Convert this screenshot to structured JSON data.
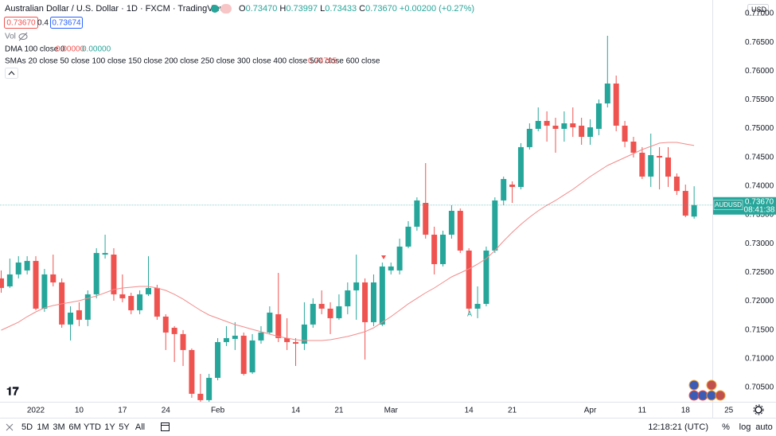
{
  "header": {
    "title": "Australian Dollar / U.S. Dollar · 1D · FXCM · TradingView",
    "ohlc": [
      {
        "key": "O",
        "value": "0.73470"
      },
      {
        "key": "H",
        "value": "0.73997"
      },
      {
        "key": "L",
        "value": "0.73433"
      },
      {
        "key": "C",
        "value": "0.73670"
      }
    ],
    "change": "+0.00200 (+0.27%)",
    "bid": "0.73670",
    "spread": "0.4",
    "ask": "0.73674",
    "vol": "Vol",
    "dma": {
      "name": "DMA 100 close 0",
      "values": [
        "0.00000",
        "0.00000"
      ]
    },
    "currency": "USD"
  },
  "toolbar": {
    "ranges": [
      "5D",
      "1M",
      "3M",
      "6M",
      "YTD",
      "1Y",
      "5Y",
      "All"
    ],
    "clock": "12:18:21 (UTC)",
    "options": [
      "%",
      "log",
      "auto"
    ]
  },
  "chart_data": {
    "type": "candlestick",
    "open": [
      0.72395,
      0.72256,
      0.72464,
      0.72533,
      0.72699,
      0.71869,
      0.72464,
      0.72325,
      0.71593,
      0.71841,
      0.71676,
      0.72118,
      0.72809,
      0.72809,
      0.72118,
      0.7209,
      0.71841,
      0.72118,
      0.72229,
      0.71731,
      0.71537,
      0.71427,
      0.7115,
      0.70389,
      0.70279,
      0.70666,
      0.71288,
      0.71343,
      0.71399,
      0.70762,
      0.71316,
      0.71454,
      0.71772,
      0.71357,
      0.71288,
      0.7126,
      0.71593,
      0.71952,
      0.71869,
      0.71703,
      0.7191,
      0.72187,
      0.72325,
      0.71634,
      0.71593,
      0.72533,
      0.72533,
      0.72948,
      0.73294,
      0.73708,
      0.73155,
      0.72643,
      0.73155,
      0.7357,
      0.72879,
      0.71869,
      0.71952,
      0.72879,
      0.7375,
      0.74026,
      0.73985,
      0.74677,
      0.74995,
      0.75133,
      0.7505,
      0.74995,
      0.75091,
      0.7505,
      0.74856,
      0.74995,
      0.75437,
      0.75783,
      0.7505,
      0.74773,
      0.7458,
      0.74165,
      0.74524,
      0.74497,
      0.74165,
      0.73916,
      0.7347
    ],
    "high": [
      0.72533,
      0.7274,
      0.72782,
      0.72782,
      0.72782,
      0.7256,
      0.72809,
      0.72395,
      0.7191,
      0.7198,
      0.72187,
      0.7292,
      0.73155,
      0.7292,
      0.72464,
      0.72146,
      0.72187,
      0.72782,
      0.72284,
      0.71772,
      0.71565,
      0.71496,
      0.71177,
      0.70735,
      0.70735,
      0.71357,
      0.71565,
      0.71634,
      0.71454,
      0.71427,
      0.71565,
      0.7191,
      0.72491,
      0.71703,
      0.71357,
      0.7198,
      0.72049,
      0.72187,
      0.7198,
      0.72118,
      0.72325,
      0.72809,
      0.72395,
      0.72464,
      0.72671,
      0.72671,
      0.73086,
      0.7339,
      0.73805,
      0.744,
      0.73294,
      0.73224,
      0.73667,
      0.73611,
      0.7292,
      0.72256,
      0.72948,
      0.73805,
      0.74165,
      0.74082,
      0.74746,
      0.75091,
      0.75368,
      0.75299,
      0.75188,
      0.75299,
      0.75368,
      0.75188,
      0.75161,
      0.75506,
      0.76613,
      0.75921,
      0.75133,
      0.74856,
      0.74677,
      0.74912,
      0.74677,
      0.74677,
      0.7422,
      0.74026,
      0.73997
    ],
    "low": [
      0.72146,
      0.72229,
      0.72395,
      0.72464,
      0.71841,
      0.71814,
      0.72256,
      0.71537,
      0.71316,
      0.71565,
      0.71565,
      0.72049,
      0.7274,
      0.72007,
      0.7198,
      0.71772,
      0.71772,
      0.7209,
      0.71676,
      0.7115,
      0.70942,
      0.70873,
      0.7032,
      0.70251,
      0.70251,
      0.70624,
      0.71219,
      0.7115,
      0.70707,
      0.70735,
      0.7126,
      0.71427,
      0.71288,
      0.7115,
      0.70873,
      0.7115,
      0.71537,
      0.71772,
      0.71427,
      0.71676,
      0.71772,
      0.71676,
      0.70984,
      0.71565,
      0.71565,
      0.72464,
      0.72464,
      0.7292,
      0.73224,
      0.73086,
      0.72464,
      0.72602,
      0.73086,
      0.72837,
      0.71772,
      0.71703,
      0.7191,
      0.72837,
      0.73667,
      0.73708,
      0.73943,
      0.74635,
      0.74953,
      0.74773,
      0.7458,
      0.74773,
      0.74856,
      0.74718,
      0.74718,
      0.74884,
      0.75368,
      0.74953,
      0.74677,
      0.74497,
      0.74123,
      0.73985,
      0.73943,
      0.73985,
      0.73846,
      0.73459,
      0.73433
    ],
    "close": [
      0.72229,
      0.72464,
      0.72671,
      0.72699,
      0.71869,
      0.72464,
      0.72325,
      0.71593,
      0.718,
      0.71676,
      0.72118,
      0.72837,
      0.72837,
      0.72118,
      0.72049,
      0.71841,
      0.72118,
      0.72229,
      0.71731,
      0.71454,
      0.71427,
      0.7115,
      0.70389,
      0.70279,
      0.70666,
      0.71288,
      0.71357,
      0.71399,
      0.70735,
      0.71316,
      0.71454,
      0.718,
      0.71357,
      0.71288,
      0.7126,
      0.71593,
      0.71952,
      0.71869,
      0.71703,
      0.7191,
      0.72187,
      0.72325,
      0.71634,
      0.72325,
      0.72602,
      0.72602,
      0.72948,
      0.73294,
      0.7375,
      0.73155,
      0.72643,
      0.73155,
      0.7357,
      0.72879,
      0.71869,
      0.71952,
      0.72879,
      0.7375,
      0.74123,
      0.73985,
      0.74677,
      0.74995,
      0.75133,
      0.7505,
      0.74995,
      0.75091,
      0.75022,
      0.74856,
      0.75022,
      0.75437,
      0.75783,
      0.7505,
      0.74773,
      0.7458,
      0.74165,
      0.74538,
      0.74497,
      0.74165,
      0.73916,
      0.73487,
      0.7367
    ],
    "up_color": "#26a69a",
    "down_color": "#ef5350",
    "series": [
      {
        "name": "SMAs 20 close 50 close 100 close 150 close 200 close 250 close 300 close 400 close 500 close 600 close",
        "color": "#f28b8b",
        "values": [
          0.71495,
          0.71564,
          0.71634,
          0.7173,
          0.71813,
          0.71883,
          0.71924,
          0.71952,
          0.71979,
          0.72007,
          0.72049,
          0.7209,
          0.72145,
          0.72201,
          0.72228,
          0.72242,
          0.72256,
          0.72256,
          0.72228,
          0.72187,
          0.72118,
          0.72035,
          0.71938,
          0.71841,
          0.71758,
          0.71703,
          0.71647,
          0.71592,
          0.71551,
          0.71509,
          0.71468,
          0.71426,
          0.71385,
          0.71357,
          0.71329,
          0.71315,
          0.71315,
          0.71315,
          0.71329,
          0.71357,
          0.71385,
          0.71426,
          0.71468,
          0.71537,
          0.71634,
          0.7173,
          0.71841,
          0.71952,
          0.72049,
          0.72145,
          0.72228,
          0.72325,
          0.72422,
          0.72491,
          0.7256,
          0.72643,
          0.7274,
          0.72878,
          0.73044,
          0.73196,
          0.73335,
          0.73459,
          0.7357,
          0.73667,
          0.7375,
          0.73847,
          0.73943,
          0.74054,
          0.74165,
          0.74261,
          0.74358,
          0.74427,
          0.74497,
          0.74566,
          0.74635,
          0.7469,
          0.74746,
          0.74759,
          0.74759,
          0.74732,
          0.74705
        ]
      }
    ],
    "symbol_label": "AUDUSD",
    "last_price_label": "0.73670",
    "countdown": "08:41:38",
    "annotation": "A",
    "xlim": [
      -0.136,
      82.1
    ],
    "xticks": [
      {
        "value": 4,
        "label": "2022"
      },
      {
        "value": 9,
        "label": "10"
      },
      {
        "value": 14,
        "label": "17"
      },
      {
        "value": 19,
        "label": "24"
      },
      {
        "value": 25,
        "label": "Feb"
      },
      {
        "value": 34,
        "label": "14"
      },
      {
        "value": 39,
        "label": "21"
      },
      {
        "value": 45,
        "label": "Mar"
      },
      {
        "value": 54,
        "label": "14"
      },
      {
        "value": 59,
        "label": "21"
      },
      {
        "value": 68,
        "label": "Apr"
      },
      {
        "value": 74,
        "label": "11"
      },
      {
        "value": 79,
        "label": "18"
      },
      {
        "value": 84,
        "label": "25"
      }
    ],
    "ylim": [
      0.7025,
      0.77235
    ],
    "yticks": [
      {
        "value": 0.705,
        "label": "0.70500"
      },
      {
        "value": 0.71,
        "label": "0.71000"
      },
      {
        "value": 0.715,
        "label": "0.71500"
      },
      {
        "value": 0.72,
        "label": "0.72000"
      },
      {
        "value": 0.725,
        "label": "0.72500"
      },
      {
        "value": 0.73,
        "label": "0.73000"
      },
      {
        "value": 0.735,
        "label": "0.73500"
      },
      {
        "value": 0.74,
        "label": "0.74000"
      },
      {
        "value": 0.745,
        "label": "0.74500"
      },
      {
        "value": 0.75,
        "label": "0.75000"
      },
      {
        "value": 0.755,
        "label": "0.75500"
      },
      {
        "value": 0.76,
        "label": "0.76000"
      },
      {
        "value": 0.765,
        "label": "0.76500"
      },
      {
        "value": 0.77,
        "label": "0.77000"
      }
    ],
    "grid": false
  }
}
